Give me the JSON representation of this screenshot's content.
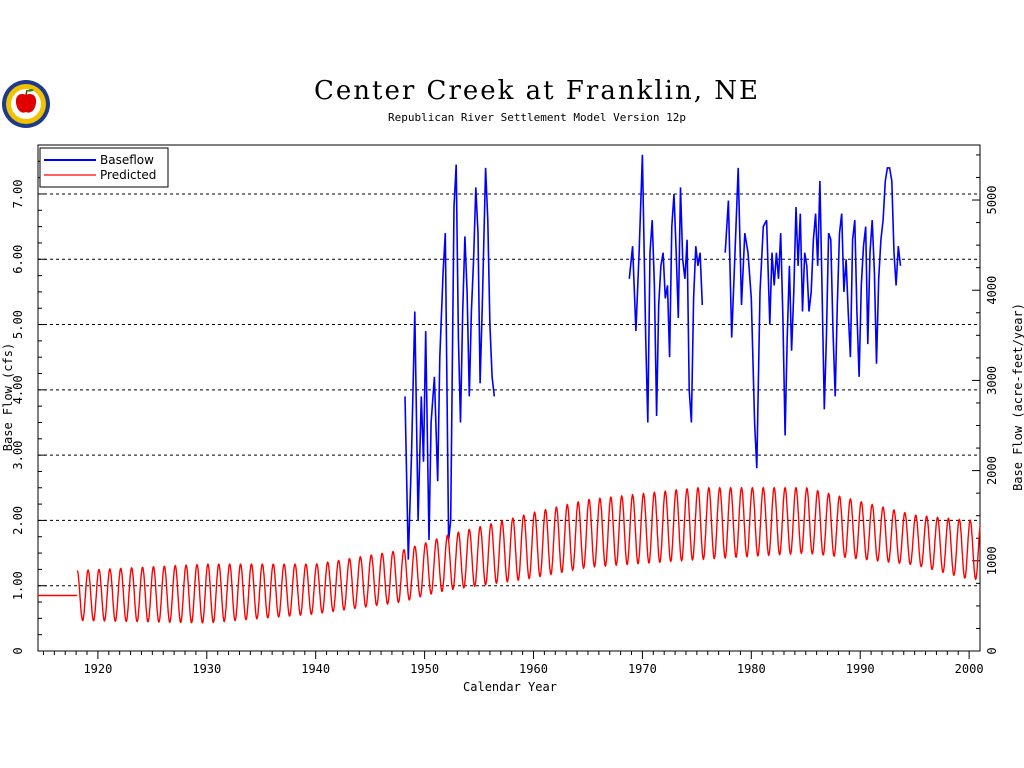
{
  "title": "Center Creek at Franklin, NE",
  "subtitle": "Republican River Settlement Model Version 12p",
  "colors": {
    "baseflow": "#0000ff",
    "predicted": "#ff0000",
    "grid": "#000000"
  },
  "chart_data": {
    "type": "line",
    "xlabel": "Calendar Year",
    "ylabel": "Base Flow (cfs)",
    "y2label": "Base Flow (acre-feet/year)",
    "xlim": [
      1914.5,
      2001
    ],
    "ylim": [
      0,
      7.75
    ],
    "y2lim": [
      0,
      5610
    ],
    "xticks": [
      "1920",
      "1930",
      "1940",
      "1950",
      "1960",
      "1970",
      "1980",
      "1990",
      "2000"
    ],
    "yticks": [
      "0",
      "1.00",
      "2.00",
      "3.00",
      "4.00",
      "5.00",
      "6.00",
      "7.00"
    ],
    "y2ticks": [
      "0",
      "1000",
      "2000",
      "3000",
      "4000",
      "5000"
    ],
    "grid": "horizontal dashed",
    "legend_position": "top-left",
    "series": [
      {
        "name": "Baseflow",
        "segments": [
          [
            [
              1948.2,
              3.9
            ],
            [
              1948.5,
              1.4
            ],
            [
              1948.8,
              3.0
            ],
            [
              1949.1,
              5.2
            ],
            [
              1949.4,
              2.0
            ],
            [
              1949.7,
              3.9
            ],
            [
              1949.9,
              2.9
            ],
            [
              1950.1,
              4.9
            ],
            [
              1950.4,
              1.7
            ],
            [
              1950.6,
              3.5
            ],
            [
              1950.9,
              4.2
            ],
            [
              1951.2,
              2.6
            ],
            [
              1951.4,
              4.5
            ],
            [
              1951.7,
              5.8
            ],
            [
              1951.9,
              6.4
            ],
            [
              1952.2,
              1.7
            ],
            [
              1952.4,
              2.0
            ],
            [
              1952.7,
              6.8
            ],
            [
              1952.9,
              7.45
            ],
            [
              1953.1,
              4.8
            ],
            [
              1953.3,
              3.5
            ],
            [
              1953.5,
              5.2
            ],
            [
              1953.7,
              6.35
            ],
            [
              1953.9,
              5.5
            ],
            [
              1954.1,
              3.9
            ],
            [
              1954.3,
              5.2
            ],
            [
              1954.5,
              6.0
            ],
            [
              1954.7,
              7.1
            ],
            [
              1954.9,
              6.4
            ],
            [
              1955.1,
              4.1
            ],
            [
              1955.3,
              5.3
            ],
            [
              1955.6,
              7.4
            ],
            [
              1955.8,
              6.6
            ],
            [
              1956.0,
              5.0
            ],
            [
              1956.2,
              4.2
            ],
            [
              1956.4,
              3.9
            ]
          ],
          [
            [
              1968.8,
              5.7
            ],
            [
              1969.1,
              6.2
            ],
            [
              1969.4,
              4.9
            ],
            [
              1969.7,
              6.1
            ],
            [
              1970.0,
              7.6
            ],
            [
              1970.3,
              4.8
            ],
            [
              1970.5,
              3.5
            ],
            [
              1970.7,
              6.1
            ],
            [
              1970.9,
              6.6
            ],
            [
              1971.1,
              5.6
            ],
            [
              1971.3,
              3.6
            ],
            [
              1971.5,
              5.3
            ],
            [
              1971.7,
              5.9
            ],
            [
              1971.9,
              6.1
            ],
            [
              1972.1,
              5.4
            ],
            [
              1972.3,
              5.6
            ],
            [
              1972.5,
              4.5
            ],
            [
              1972.7,
              6.5
            ],
            [
              1972.9,
              7.0
            ],
            [
              1973.1,
              6.1
            ],
            [
              1973.3,
              5.1
            ],
            [
              1973.5,
              7.1
            ],
            [
              1973.7,
              6.0
            ],
            [
              1973.9,
              5.7
            ],
            [
              1974.1,
              6.3
            ],
            [
              1974.3,
              4.0
            ],
            [
              1974.5,
              3.5
            ],
            [
              1974.7,
              5.4
            ],
            [
              1974.9,
              6.2
            ],
            [
              1975.1,
              5.9
            ],
            [
              1975.3,
              6.1
            ],
            [
              1975.5,
              5.3
            ]
          ],
          [
            [
              1977.6,
              6.1
            ],
            [
              1977.9,
              6.9
            ],
            [
              1978.2,
              4.8
            ],
            [
              1978.5,
              6.1
            ],
            [
              1978.8,
              7.4
            ],
            [
              1979.1,
              5.3
            ],
            [
              1979.4,
              6.4
            ],
            [
              1979.7,
              6.1
            ],
            [
              1980.0,
              5.4
            ],
            [
              1980.3,
              3.5
            ],
            [
              1980.5,
              2.8
            ],
            [
              1980.8,
              5.5
            ],
            [
              1981.1,
              6.5
            ],
            [
              1981.4,
              6.6
            ],
            [
              1981.7,
              5.0
            ],
            [
              1981.9,
              6.1
            ],
            [
              1982.1,
              5.6
            ],
            [
              1982.3,
              6.1
            ],
            [
              1982.5,
              5.7
            ],
            [
              1982.7,
              6.4
            ],
            [
              1982.9,
              5.1
            ],
            [
              1983.1,
              3.3
            ],
            [
              1983.3,
              4.8
            ],
            [
              1983.5,
              5.9
            ],
            [
              1983.7,
              4.6
            ],
            [
              1983.9,
              5.5
            ],
            [
              1984.1,
              6.8
            ],
            [
              1984.3,
              5.9
            ],
            [
              1984.5,
              6.7
            ],
            [
              1984.7,
              5.2
            ],
            [
              1984.9,
              6.1
            ],
            [
              1985.1,
              5.9
            ],
            [
              1985.3,
              5.2
            ],
            [
              1985.5,
              5.5
            ],
            [
              1985.7,
              6.3
            ],
            [
              1985.9,
              6.7
            ],
            [
              1986.1,
              5.9
            ],
            [
              1986.3,
              7.2
            ],
            [
              1986.5,
              5.5
            ],
            [
              1986.7,
              3.7
            ],
            [
              1986.9,
              4.8
            ],
            [
              1987.1,
              6.4
            ],
            [
              1987.3,
              6.3
            ],
            [
              1987.5,
              4.9
            ],
            [
              1987.7,
              3.9
            ],
            [
              1987.9,
              5.3
            ],
            [
              1988.1,
              6.4
            ],
            [
              1988.3,
              6.7
            ],
            [
              1988.5,
              5.5
            ],
            [
              1988.7,
              6.0
            ],
            [
              1988.9,
              5.2
            ],
            [
              1989.1,
              4.5
            ],
            [
              1989.3,
              6.3
            ],
            [
              1989.5,
              6.6
            ],
            [
              1989.7,
              5.2
            ],
            [
              1989.9,
              4.2
            ],
            [
              1990.1,
              5.6
            ],
            [
              1990.3,
              6.2
            ],
            [
              1990.5,
              6.5
            ],
            [
              1990.7,
              4.7
            ],
            [
              1990.9,
              6.1
            ],
            [
              1991.1,
              6.6
            ],
            [
              1991.3,
              5.8
            ],
            [
              1991.5,
              4.4
            ],
            [
              1991.7,
              5.7
            ],
            [
              1991.9,
              6.3
            ],
            [
              1992.1,
              6.6
            ],
            [
              1992.3,
              7.2
            ],
            [
              1992.5,
              7.4
            ],
            [
              1992.7,
              7.4
            ],
            [
              1992.9,
              7.2
            ],
            [
              1993.1,
              6.1
            ],
            [
              1993.3,
              5.6
            ],
            [
              1993.5,
              6.2
            ],
            [
              1993.7,
              5.9
            ]
          ]
        ]
      },
      {
        "name": "Predicted",
        "flat": [
          [
            1914.5,
            0.85
          ],
          [
            1918.1,
            0.85
          ]
        ],
        "start": 1918.1,
        "end": 2001,
        "mean_anchors": [
          [
            1918,
            0.85
          ],
          [
            1930,
            0.88
          ],
          [
            1940,
            0.95
          ],
          [
            1948,
            1.15
          ],
          [
            1952,
            1.35
          ],
          [
            1958,
            1.55
          ],
          [
            1965,
            1.8
          ],
          [
            1975,
            1.95
          ],
          [
            1985,
            2.0
          ],
          [
            1990,
            1.85
          ],
          [
            1995,
            1.7
          ],
          [
            2000,
            1.55
          ]
        ],
        "amp_anchors": [
          [
            1918,
            0.38
          ],
          [
            1930,
            0.45
          ],
          [
            1940,
            0.38
          ],
          [
            1950,
            0.4
          ],
          [
            1955,
            0.45
          ],
          [
            1960,
            0.5
          ],
          [
            1975,
            0.55
          ],
          [
            1985,
            0.5
          ],
          [
            1995,
            0.38
          ],
          [
            2000,
            0.45
          ]
        ]
      }
    ]
  }
}
